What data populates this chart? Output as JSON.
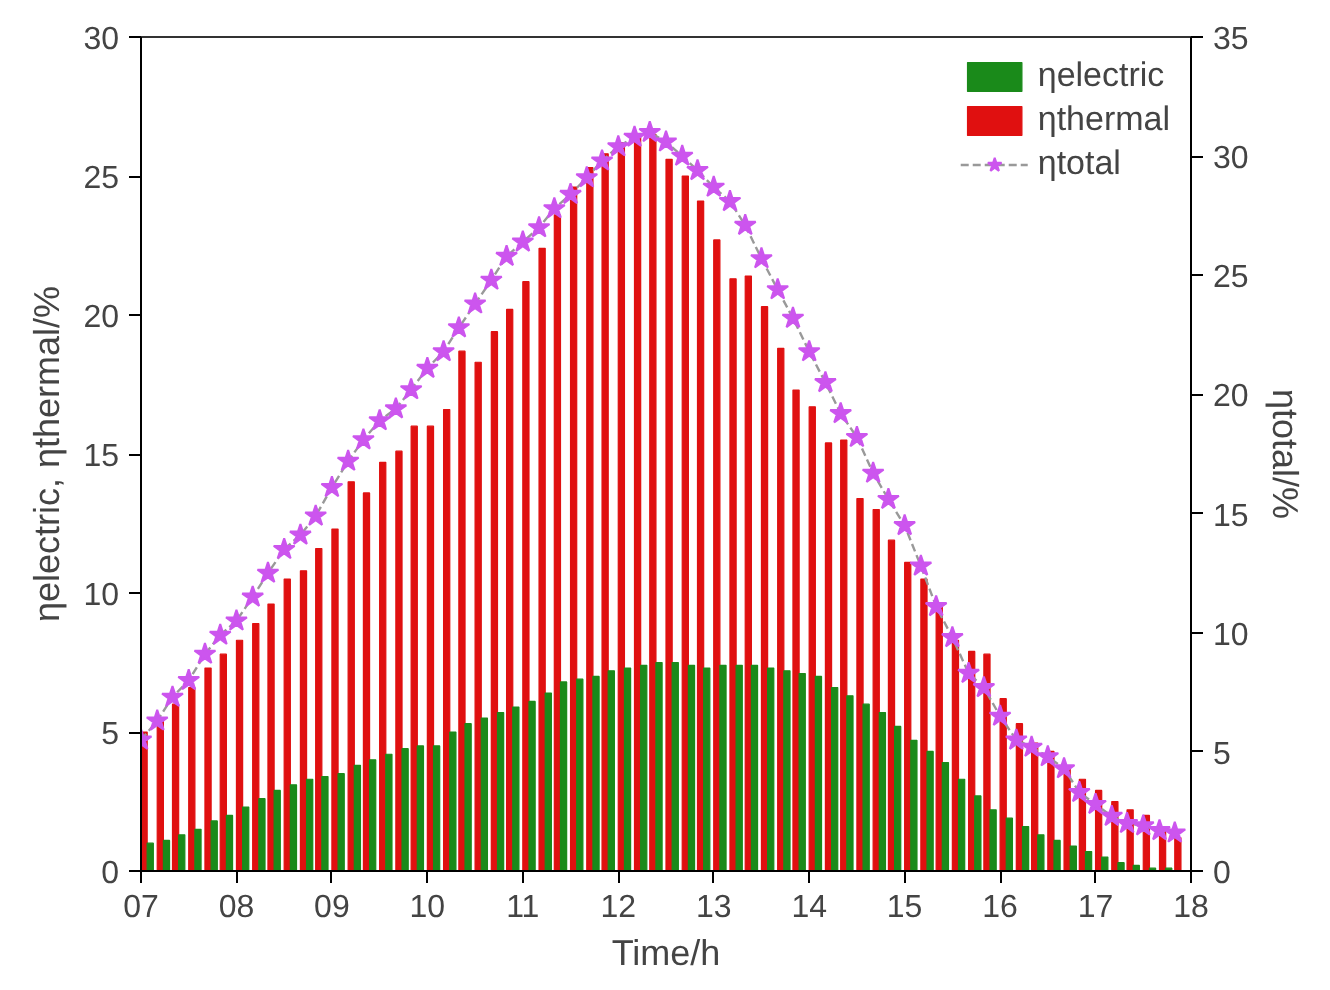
{
  "chart_data": {
    "type": "bar",
    "xlabel": "Time/h",
    "ylabel": "ηelectric, ηthermal/%",
    "y2label": "ηtotal/%",
    "x": [
      7.0,
      7.17,
      7.33,
      7.5,
      7.67,
      7.83,
      8.0,
      8.17,
      8.33,
      8.5,
      8.67,
      8.83,
      9.0,
      9.17,
      9.33,
      9.5,
      9.67,
      9.83,
      10.0,
      10.17,
      10.33,
      10.5,
      10.67,
      10.83,
      11.0,
      11.17,
      11.33,
      11.5,
      11.67,
      11.83,
      12.0,
      12.17,
      12.33,
      12.5,
      12.67,
      12.83,
      13.0,
      13.17,
      13.33,
      13.5,
      13.67,
      13.83,
      14.0,
      14.17,
      14.33,
      14.5,
      14.67,
      14.83,
      15.0,
      15.17,
      15.33,
      15.5,
      15.67,
      15.83,
      16.0,
      16.17,
      16.33,
      16.5,
      16.67,
      16.83,
      17.0,
      17.17,
      17.33,
      17.5,
      17.67,
      17.83
    ],
    "series": [
      {
        "name": "ηelectric",
        "color": "#1a8a1a",
        "values": [
          1.0,
          1.1,
          1.3,
          1.5,
          1.8,
          2.0,
          2.3,
          2.6,
          2.9,
          3.1,
          3.3,
          3.4,
          3.5,
          3.8,
          4.0,
          4.2,
          4.4,
          4.5,
          4.5,
          5.0,
          5.3,
          5.5,
          5.7,
          5.9,
          6.1,
          6.4,
          6.8,
          6.9,
          7.0,
          7.2,
          7.3,
          7.4,
          7.5,
          7.5,
          7.4,
          7.3,
          7.4,
          7.4,
          7.4,
          7.3,
          7.2,
          7.1,
          7.0,
          6.6,
          6.3,
          6.0,
          5.7,
          5.2,
          4.7,
          4.3,
          3.9,
          3.3,
          2.7,
          2.2,
          1.9,
          1.6,
          1.3,
          1.1,
          0.9,
          0.7,
          0.5,
          0.3,
          0.2,
          0.1,
          0.1,
          null
        ]
      },
      {
        "name": "ηthermal",
        "color": "#e01010",
        "values": [
          5.0,
          5.5,
          6.0,
          6.6,
          7.3,
          7.8,
          8.3,
          8.9,
          9.6,
          10.5,
          10.8,
          11.6,
          12.3,
          14.0,
          13.6,
          14.7,
          15.1,
          16.0,
          16.0,
          16.6,
          18.7,
          18.3,
          19.4,
          20.2,
          21.2,
          22.4,
          23.6,
          24.6,
          25.3,
          25.8,
          26.2,
          26.4,
          26.5,
          25.6,
          25.0,
          24.1,
          22.7,
          21.3,
          21.4,
          20.3,
          18.8,
          17.3,
          16.7,
          15.4,
          15.5,
          13.4,
          13.0,
          11.9,
          11.1,
          10.5,
          9.5,
          8.3,
          7.9,
          7.8,
          6.2,
          5.3,
          4.6,
          4.3,
          3.7,
          3.3,
          2.9,
          2.5,
          2.2,
          2.0,
          1.6,
          1.2
        ]
      },
      {
        "name": "ηtotal",
        "type": "line",
        "axis": "y2",
        "color": "#cc55ee",
        "line_style": "dashed",
        "marker": "star",
        "values": [
          5.5,
          6.3,
          7.3,
          8.0,
          9.1,
          9.9,
          10.5,
          11.5,
          12.5,
          13.5,
          14.1,
          14.9,
          16.1,
          17.2,
          18.1,
          18.9,
          19.4,
          20.2,
          21.1,
          21.8,
          22.8,
          23.8,
          24.8,
          25.8,
          26.4,
          27.0,
          27.8,
          28.4,
          29.1,
          29.8,
          30.4,
          30.8,
          31.0,
          30.6,
          30.0,
          29.4,
          28.7,
          28.1,
          27.1,
          25.7,
          24.4,
          23.2,
          21.8,
          20.5,
          19.2,
          18.2,
          16.7,
          15.6,
          14.5,
          12.8,
          11.1,
          9.8,
          8.3,
          7.7,
          6.5,
          5.5,
          5.2,
          4.8,
          4.3,
          3.3,
          2.8,
          2.3,
          2.0,
          1.9,
          1.7,
          1.6
        ]
      }
    ],
    "xlim": [
      7,
      18
    ],
    "xticks": [
      {
        "value": 7,
        "label": "07"
      },
      {
        "value": 8,
        "label": "08"
      },
      {
        "value": 9,
        "label": "09"
      },
      10,
      11,
      12,
      13,
      14,
      15,
      16,
      17,
      18
    ],
    "ylim": [
      0,
      30
    ],
    "yticks": [
      0,
      5,
      10,
      15,
      20,
      25,
      30
    ],
    "y2lim": [
      0,
      35
    ],
    "y2ticks": [
      0,
      5,
      10,
      15,
      20,
      25,
      30,
      35
    ],
    "grid": false,
    "legend": "top right"
  }
}
